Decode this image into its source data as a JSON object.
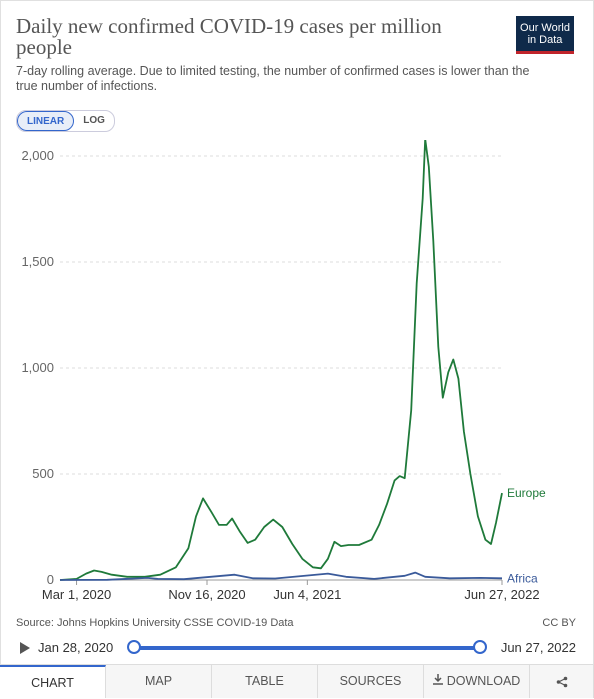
{
  "header": {
    "title": "Daily new confirmed COVID-19 cases per million people",
    "subtitle": "7-day rolling average. Due to limited testing, the number of confirmed cases is lower than the true number of infections.",
    "logo_line1": "Our World",
    "logo_line2": "in Data"
  },
  "scale_toggle": {
    "linear": "LINEAR",
    "log": "LOG",
    "selected": "LINEAR"
  },
  "chart_data": {
    "type": "line",
    "ylim": [
      0,
      2000
    ],
    "y_ticks": [
      0,
      500,
      1000,
      1500,
      2000
    ],
    "y_tick_labels": [
      "0",
      "500",
      "1,000",
      "1,500",
      "2,000"
    ],
    "x_ticks": [
      "Mar 1, 2020",
      "Nov 16, 2020",
      "Jun 4, 2021",
      "Jun 27, 2022"
    ],
    "x_range": [
      "2020-01-28",
      "2022-06-27"
    ],
    "grid": "horizontal dashed",
    "series": [
      {
        "name": "Europe",
        "color": "#1f7a3a",
        "points": [
          [
            "2020-01-28",
            0
          ],
          [
            "2020-03-01",
            5
          ],
          [
            "2020-03-20",
            30
          ],
          [
            "2020-04-05",
            45
          ],
          [
            "2020-04-20",
            38
          ],
          [
            "2020-05-10",
            25
          ],
          [
            "2020-06-10",
            15
          ],
          [
            "2020-07-15",
            15
          ],
          [
            "2020-08-15",
            25
          ],
          [
            "2020-09-15",
            60
          ],
          [
            "2020-10-10",
            150
          ],
          [
            "2020-10-25",
            300
          ],
          [
            "2020-11-08",
            385
          ],
          [
            "2020-11-25",
            320
          ],
          [
            "2020-12-10",
            260
          ],
          [
            "2020-12-25",
            260
          ],
          [
            "2021-01-05",
            290
          ],
          [
            "2021-01-20",
            230
          ],
          [
            "2021-02-05",
            175
          ],
          [
            "2021-02-20",
            190
          ],
          [
            "2021-03-10",
            250
          ],
          [
            "2021-03-28",
            285
          ],
          [
            "2021-04-15",
            250
          ],
          [
            "2021-05-05",
            170
          ],
          [
            "2021-05-25",
            100
          ],
          [
            "2021-06-15",
            60
          ],
          [
            "2021-07-01",
            55
          ],
          [
            "2021-07-15",
            100
          ],
          [
            "2021-07-28",
            180
          ],
          [
            "2021-08-10",
            160
          ],
          [
            "2021-08-25",
            165
          ],
          [
            "2021-09-15",
            165
          ],
          [
            "2021-10-10",
            190
          ],
          [
            "2021-10-25",
            260
          ],
          [
            "2021-11-10",
            360
          ],
          [
            "2021-11-25",
            470
          ],
          [
            "2021-12-05",
            490
          ],
          [
            "2021-12-15",
            480
          ],
          [
            "2021-12-28",
            800
          ],
          [
            "2022-01-08",
            1400
          ],
          [
            "2022-01-20",
            1800
          ],
          [
            "2022-01-25",
            2080
          ],
          [
            "2022-02-01",
            1950
          ],
          [
            "2022-02-10",
            1600
          ],
          [
            "2022-02-20",
            1100
          ],
          [
            "2022-03-01",
            860
          ],
          [
            "2022-03-12",
            980
          ],
          [
            "2022-03-22",
            1040
          ],
          [
            "2022-04-01",
            950
          ],
          [
            "2022-04-12",
            700
          ],
          [
            "2022-04-25",
            500
          ],
          [
            "2022-05-10",
            300
          ],
          [
            "2022-05-25",
            190
          ],
          [
            "2022-06-05",
            170
          ],
          [
            "2022-06-15",
            270
          ],
          [
            "2022-06-27",
            410
          ]
        ]
      },
      {
        "name": "Africa",
        "color": "#3a5a9a",
        "points": [
          [
            "2020-01-28",
            0
          ],
          [
            "2020-05-01",
            1
          ],
          [
            "2020-07-20",
            10
          ],
          [
            "2020-08-10",
            5
          ],
          [
            "2020-10-01",
            4
          ],
          [
            "2021-01-10",
            25
          ],
          [
            "2021-02-15",
            8
          ],
          [
            "2021-04-01",
            7
          ],
          [
            "2021-07-15",
            30
          ],
          [
            "2021-08-20",
            15
          ],
          [
            "2021-10-15",
            5
          ],
          [
            "2021-12-15",
            20
          ],
          [
            "2022-01-05",
            35
          ],
          [
            "2022-01-25",
            15
          ],
          [
            "2022-03-15",
            8
          ],
          [
            "2022-05-15",
            10
          ],
          [
            "2022-06-27",
            8
          ]
        ]
      }
    ]
  },
  "footer": {
    "source": "Source: Johns Hopkins University CSSE COVID-19 Data",
    "license": "CC BY"
  },
  "timeline": {
    "start_label": "Jan 28, 2020",
    "end_label": "Jun 27, 2022",
    "start_fraction": 0,
    "end_fraction": 1
  },
  "tabs": [
    {
      "label": "CHART",
      "active": true
    },
    {
      "label": "MAP",
      "active": false
    },
    {
      "label": "TABLE",
      "active": false
    },
    {
      "label": "SOURCES",
      "active": false
    },
    {
      "label": "DOWNLOAD",
      "active": false
    },
    {
      "label": "",
      "active": false
    }
  ],
  "icons": {
    "play": "play-icon",
    "download": "download-icon",
    "share": "share-icon"
  },
  "colors": {
    "accent": "#3366cc",
    "europe": "#1f7a3a",
    "africa": "#3a5a9a"
  }
}
